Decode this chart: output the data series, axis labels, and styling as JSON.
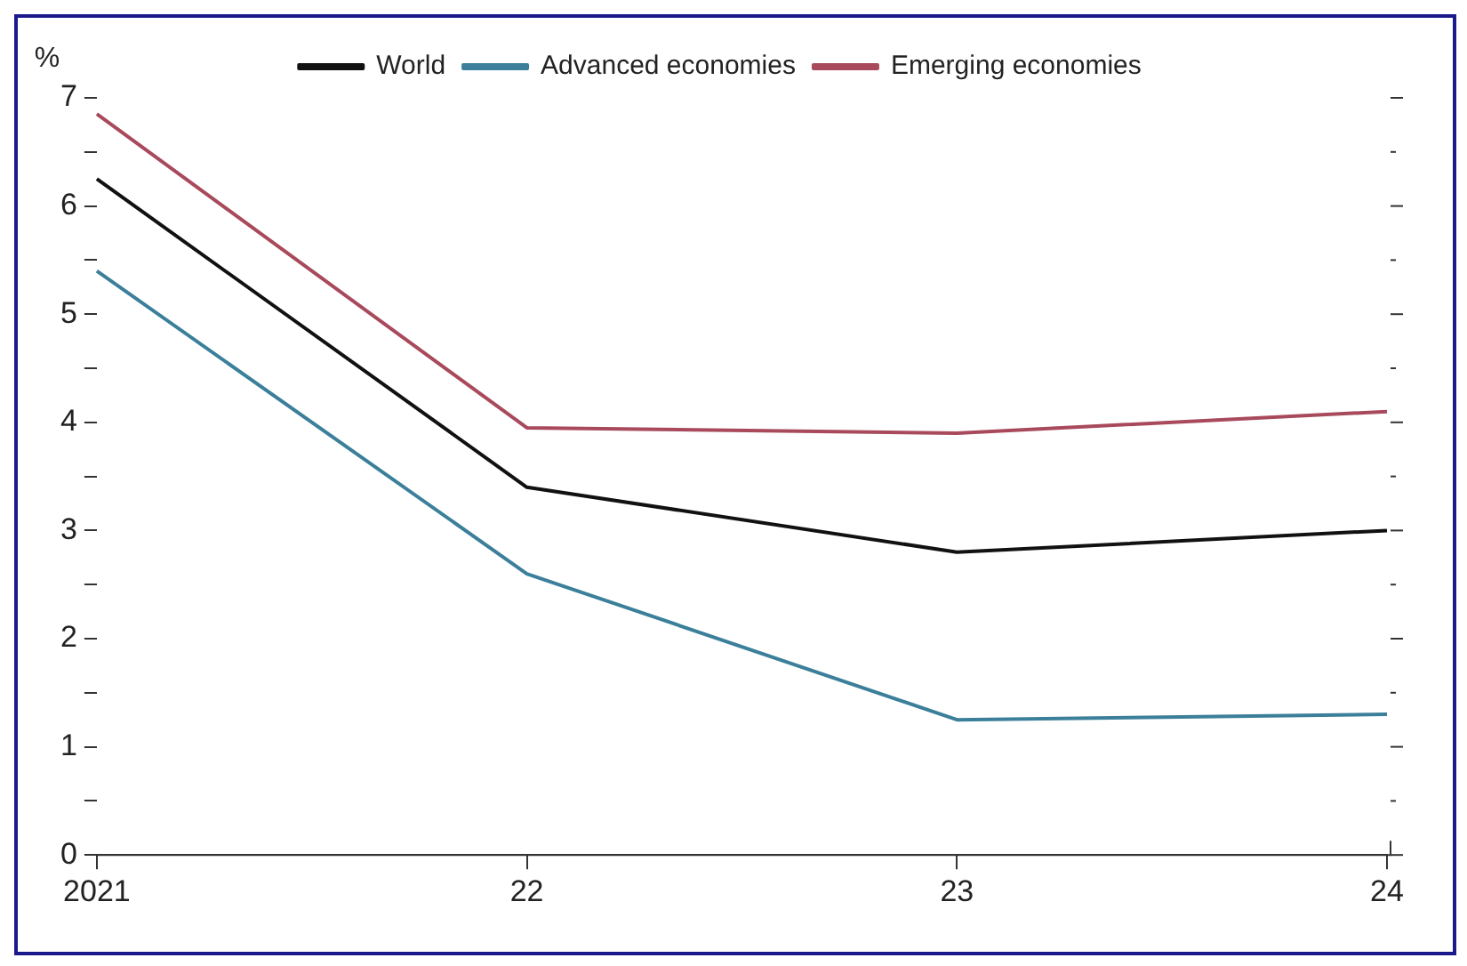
{
  "chart_data": {
    "type": "line",
    "ylabel": "%",
    "categories": [
      "2021",
      "22",
      "23",
      "24"
    ],
    "series": [
      {
        "name": "World",
        "color": "#111111",
        "values": [
          6.25,
          3.4,
          2.8,
          3.0
        ]
      },
      {
        "name": "Advanced economies",
        "color": "#3b7f9a",
        "values": [
          5.4,
          2.6,
          1.25,
          1.3
        ]
      },
      {
        "name": "Emerging economies",
        "color": "#a84a5c",
        "values": [
          6.85,
          3.95,
          3.9,
          4.1
        ]
      }
    ],
    "ylim": [
      0,
      7
    ],
    "yticks": [
      0,
      {
        "value": 0.5,
        "label": null
      },
      1,
      {
        "value": 1.5,
        "label": null
      },
      2,
      {
        "value": 2.5,
        "label": null
      },
      3,
      {
        "value": 3.5,
        "label": null
      },
      4,
      {
        "value": 4.5,
        "label": null
      },
      5,
      {
        "value": 5.5,
        "label": null
      },
      6,
      {
        "value": 6.5,
        "label": null
      },
      7
    ],
    "grid": false,
    "legend": "top",
    "marker": "none",
    "line_style": "solid"
  }
}
